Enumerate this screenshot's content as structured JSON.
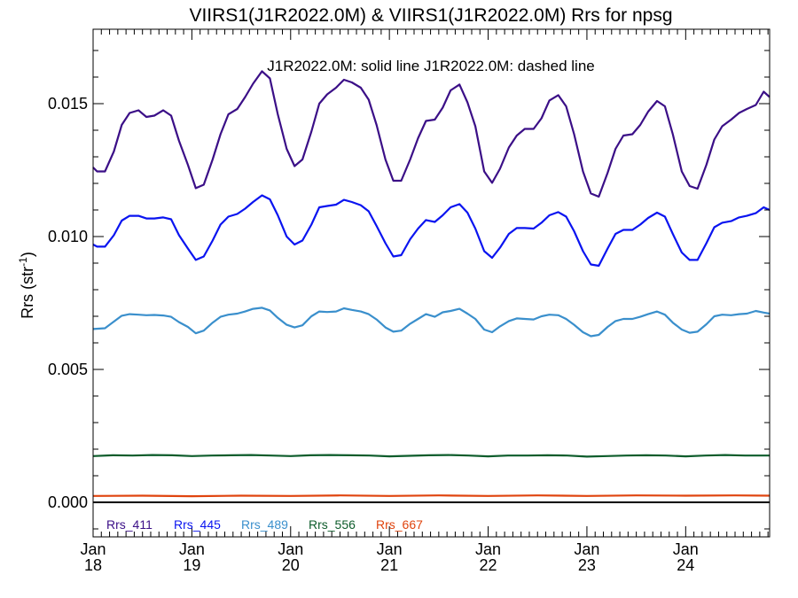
{
  "chart_data": {
    "type": "line",
    "title": "VIIRS1(J1R2022.0M) & VIIRS1(J1R2022.0M)  Rrs for npsg",
    "annotation": "J1R2022.0M: solid line   J1R2022.0M: dashed line",
    "ylabel": "Rrs (str",
    "ylabel_sup": "-1",
    "ylabel_tail": ")",
    "xlim": [
      2018.0,
      2024.85
    ],
    "ylim": [
      -0.0013,
      0.0178
    ],
    "yticks": [
      0.0,
      0.005,
      0.01,
      0.015
    ],
    "ytick_labels": [
      "0.000",
      "0.005",
      "0.010",
      "0.015"
    ],
    "xticks": [
      {
        "value": 2018.0,
        "month": "Jan",
        "year": "18"
      },
      {
        "value": 2019.0,
        "month": "Jan",
        "year": "19"
      },
      {
        "value": 2020.0,
        "month": "Jan",
        "year": "20"
      },
      {
        "value": 2021.0,
        "month": "Jan",
        "year": "21"
      },
      {
        "value": 2022.0,
        "month": "Jan",
        "year": "22"
      },
      {
        "value": 2023.0,
        "month": "Jan",
        "year": "23"
      },
      {
        "value": 2024.0,
        "month": "Jan",
        "year": "24"
      }
    ],
    "grid": false,
    "zero_line": true,
    "legend_placement": "bottom-left inside plot",
    "series": [
      {
        "name": "Rrs_411",
        "color": "#3b0f87",
        "x": [
          2018.0,
          2018.04,
          2018.12,
          2018.21,
          2018.29,
          2018.37,
          2018.46,
          2018.54,
          2018.62,
          2018.71,
          2018.79,
          2018.87,
          2018.96,
          2019.04,
          2019.12,
          2019.21,
          2019.29,
          2019.37,
          2019.46,
          2019.54,
          2019.62,
          2019.71,
          2019.79,
          2019.87,
          2019.96,
          2020.04,
          2020.12,
          2020.21,
          2020.29,
          2020.37,
          2020.46,
          2020.54,
          2020.62,
          2020.71,
          2020.79,
          2020.87,
          2020.96,
          2021.04,
          2021.12,
          2021.21,
          2021.29,
          2021.37,
          2021.46,
          2021.54,
          2021.62,
          2021.71,
          2021.79,
          2021.87,
          2021.96,
          2022.04,
          2022.12,
          2022.21,
          2022.29,
          2022.37,
          2022.46,
          2022.54,
          2022.62,
          2022.71,
          2022.79,
          2022.87,
          2022.96,
          2023.04,
          2023.12,
          2023.21,
          2023.29,
          2023.37,
          2023.46,
          2023.54,
          2023.62,
          2023.71,
          2023.79,
          2023.87,
          2023.96,
          2024.04,
          2024.12,
          2024.21,
          2024.29,
          2024.37,
          2024.46,
          2024.54,
          2024.62,
          2024.71,
          2024.79,
          2024.85
        ],
        "y": [
          0.0126,
          0.01245,
          0.01245,
          0.0132,
          0.0142,
          0.01465,
          0.01475,
          0.0145,
          0.01455,
          0.01475,
          0.01455,
          0.0136,
          0.0127,
          0.01182,
          0.01195,
          0.0129,
          0.01385,
          0.0146,
          0.0148,
          0.01525,
          0.01575,
          0.01622,
          0.01595,
          0.0146,
          0.0133,
          0.01265,
          0.0129,
          0.01395,
          0.015,
          0.01535,
          0.0156,
          0.0159,
          0.0158,
          0.0156,
          0.01515,
          0.0142,
          0.0129,
          0.0121,
          0.0121,
          0.0129,
          0.0137,
          0.01435,
          0.0144,
          0.01485,
          0.0155,
          0.01572,
          0.01505,
          0.01415,
          0.01245,
          0.01202,
          0.01255,
          0.01335,
          0.0138,
          0.01405,
          0.01405,
          0.01445,
          0.01512,
          0.01532,
          0.0149,
          0.01385,
          0.01245,
          0.01162,
          0.0115,
          0.0124,
          0.0133,
          0.0138,
          0.01385,
          0.0142,
          0.0147,
          0.0151,
          0.0149,
          0.01385,
          0.01245,
          0.0119,
          0.0118,
          0.0127,
          0.01365,
          0.01415,
          0.0144,
          0.01465,
          0.0148,
          0.01495,
          0.01545,
          0.01525
        ]
      },
      {
        "name": "Rrs_445",
        "color": "#0a14f0",
        "x": [
          2018.0,
          2018.04,
          2018.12,
          2018.21,
          2018.29,
          2018.37,
          2018.46,
          2018.54,
          2018.62,
          2018.71,
          2018.79,
          2018.87,
          2018.96,
          2019.04,
          2019.12,
          2019.21,
          2019.29,
          2019.37,
          2019.46,
          2019.54,
          2019.62,
          2019.71,
          2019.79,
          2019.87,
          2019.96,
          2020.04,
          2020.12,
          2020.21,
          2020.29,
          2020.37,
          2020.46,
          2020.54,
          2020.62,
          2020.71,
          2020.79,
          2020.87,
          2020.96,
          2021.04,
          2021.12,
          2021.21,
          2021.29,
          2021.37,
          2021.46,
          2021.54,
          2021.62,
          2021.71,
          2021.79,
          2021.87,
          2021.96,
          2022.04,
          2022.12,
          2022.21,
          2022.29,
          2022.37,
          2022.46,
          2022.54,
          2022.62,
          2022.71,
          2022.79,
          2022.87,
          2022.96,
          2023.04,
          2023.12,
          2023.21,
          2023.29,
          2023.37,
          2023.46,
          2023.54,
          2023.62,
          2023.71,
          2023.79,
          2023.87,
          2023.96,
          2024.04,
          2024.12,
          2024.21,
          2024.29,
          2024.37,
          2024.46,
          2024.54,
          2024.62,
          2024.71,
          2024.79,
          2024.85
        ],
        "y": [
          0.0097,
          0.00962,
          0.00962,
          0.01005,
          0.0106,
          0.01078,
          0.01078,
          0.01068,
          0.01068,
          0.01072,
          0.01065,
          0.01005,
          0.00955,
          0.00912,
          0.00925,
          0.00985,
          0.01045,
          0.01075,
          0.01085,
          0.01105,
          0.0113,
          0.01155,
          0.0114,
          0.0108,
          0.01,
          0.0097,
          0.00985,
          0.01045,
          0.0111,
          0.01115,
          0.0112,
          0.01138,
          0.0113,
          0.01118,
          0.01095,
          0.0104,
          0.00975,
          0.00925,
          0.0093,
          0.0099,
          0.0103,
          0.01062,
          0.01055,
          0.0108,
          0.0111,
          0.01122,
          0.0109,
          0.0103,
          0.00945,
          0.0092,
          0.00958,
          0.0101,
          0.01032,
          0.01032,
          0.0103,
          0.01052,
          0.0108,
          0.01092,
          0.01075,
          0.0102,
          0.00945,
          0.00895,
          0.0089,
          0.00955,
          0.0101,
          0.01025,
          0.01025,
          0.01045,
          0.0107,
          0.0109,
          0.01075,
          0.0101,
          0.0094,
          0.00912,
          0.00912,
          0.00975,
          0.01035,
          0.01052,
          0.01058,
          0.01072,
          0.01078,
          0.01088,
          0.0111,
          0.011
        ]
      },
      {
        "name": "Rrs_489",
        "color": "#3a8fcc",
        "x": [
          2018.0,
          2018.12,
          2018.21,
          2018.29,
          2018.37,
          2018.46,
          2018.54,
          2018.62,
          2018.71,
          2018.79,
          2018.87,
          2018.96,
          2019.04,
          2019.12,
          2019.21,
          2019.29,
          2019.37,
          2019.46,
          2019.54,
          2019.62,
          2019.71,
          2019.79,
          2019.87,
          2019.96,
          2020.04,
          2020.12,
          2020.21,
          2020.29,
          2020.37,
          2020.46,
          2020.54,
          2020.62,
          2020.71,
          2020.79,
          2020.87,
          2020.96,
          2021.04,
          2021.12,
          2021.21,
          2021.29,
          2021.37,
          2021.46,
          2021.54,
          2021.62,
          2021.71,
          2021.79,
          2021.87,
          2021.96,
          2022.04,
          2022.12,
          2022.21,
          2022.29,
          2022.37,
          2022.46,
          2022.54,
          2022.62,
          2022.71,
          2022.79,
          2022.87,
          2022.96,
          2023.04,
          2023.12,
          2023.21,
          2023.29,
          2023.37,
          2023.46,
          2023.54,
          2023.62,
          2023.71,
          2023.79,
          2023.87,
          2023.96,
          2024.04,
          2024.12,
          2024.21,
          2024.29,
          2024.37,
          2024.46,
          2024.54,
          2024.62,
          2024.71,
          2024.79,
          2024.85
        ],
        "y": [
          0.00652,
          0.00655,
          0.0068,
          0.00702,
          0.00708,
          0.00706,
          0.00704,
          0.00705,
          0.00703,
          0.00698,
          0.00678,
          0.0066,
          0.00636,
          0.00646,
          0.00676,
          0.00698,
          0.00706,
          0.0071,
          0.00718,
          0.00728,
          0.00732,
          0.00722,
          0.00694,
          0.00668,
          0.00658,
          0.00666,
          0.007,
          0.00718,
          0.00716,
          0.00718,
          0.0073,
          0.00724,
          0.00718,
          0.00708,
          0.00688,
          0.00658,
          0.00642,
          0.00646,
          0.00672,
          0.0069,
          0.00708,
          0.00698,
          0.00715,
          0.0072,
          0.00728,
          0.0071,
          0.0069,
          0.0065,
          0.0064,
          0.00662,
          0.00682,
          0.00692,
          0.0069,
          0.00688,
          0.007,
          0.00706,
          0.00704,
          0.0069,
          0.00668,
          0.0064,
          0.00625,
          0.0063,
          0.0066,
          0.00682,
          0.0069,
          0.0069,
          0.00698,
          0.00708,
          0.00718,
          0.00706,
          0.00676,
          0.0065,
          0.00638,
          0.00642,
          0.0067,
          0.007,
          0.00706,
          0.00704,
          0.00708,
          0.0071,
          0.0072,
          0.00714,
          0.0071
        ]
      },
      {
        "name": "Rrs_556",
        "color": "#0d5c2b",
        "x": [
          2018.0,
          2018.2,
          2018.4,
          2018.6,
          2018.8,
          2019.0,
          2019.2,
          2019.4,
          2019.6,
          2019.8,
          2020.0,
          2020.2,
          2020.4,
          2020.6,
          2020.8,
          2021.0,
          2021.2,
          2021.4,
          2021.6,
          2021.8,
          2022.0,
          2022.2,
          2022.4,
          2022.6,
          2022.8,
          2023.0,
          2023.2,
          2023.4,
          2023.6,
          2023.8,
          2024.0,
          2024.2,
          2024.4,
          2024.6,
          2024.85
        ],
        "y": [
          0.00174,
          0.00177,
          0.00176,
          0.00178,
          0.00177,
          0.00174,
          0.00176,
          0.00177,
          0.00178,
          0.00176,
          0.00174,
          0.00177,
          0.00178,
          0.00177,
          0.00176,
          0.00173,
          0.00175,
          0.00177,
          0.00178,
          0.00176,
          0.00173,
          0.00176,
          0.00176,
          0.00177,
          0.00176,
          0.00172,
          0.00174,
          0.00176,
          0.00177,
          0.00176,
          0.00173,
          0.00176,
          0.00178,
          0.00176,
          0.00176
        ]
      },
      {
        "name": "Rrs_667",
        "color": "#e0440e",
        "x": [
          2018.0,
          2018.5,
          2019.0,
          2019.5,
          2020.0,
          2020.5,
          2021.0,
          2021.5,
          2022.0,
          2022.5,
          2023.0,
          2023.5,
          2024.0,
          2024.5,
          2024.85
        ],
        "y": [
          0.00024,
          0.00025,
          0.00023,
          0.00025,
          0.00024,
          0.00026,
          0.00024,
          0.00026,
          0.00024,
          0.00026,
          0.00024,
          0.00026,
          0.00025,
          0.00026,
          0.00025
        ]
      }
    ]
  }
}
